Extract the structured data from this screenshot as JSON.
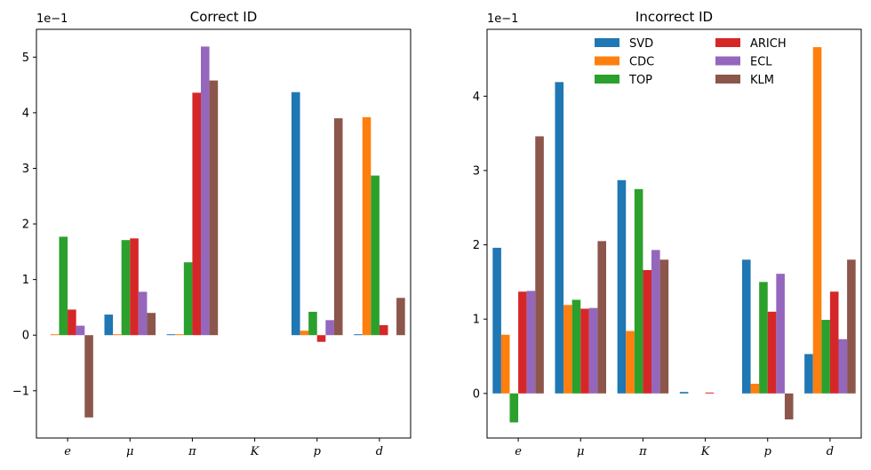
{
  "chart_data": [
    {
      "type": "bar",
      "title": "Correct ID",
      "scale_label": "1e−1",
      "categories": [
        "e",
        "μ",
        "π",
        "K",
        "p",
        "d"
      ],
      "ylim": [
        -1.85,
        5.5
      ],
      "yticks": [
        -1,
        0,
        1,
        2,
        3,
        4,
        5
      ],
      "ytick_labels": [
        "−1",
        "0",
        "1",
        "2",
        "3",
        "4",
        "5"
      ],
      "series": [
        {
          "name": "SVD",
          "color": "#1f77b4",
          "values": [
            0.0,
            0.37,
            0.01,
            0.0,
            4.37,
            0.01
          ]
        },
        {
          "name": "CDC",
          "color": "#ff7f0e",
          "values": [
            0.01,
            0.01,
            0.01,
            0.0,
            0.08,
            3.92
          ]
        },
        {
          "name": "TOP",
          "color": "#2ca02c",
          "values": [
            1.77,
            1.71,
            1.31,
            0.0,
            0.42,
            2.87
          ]
        },
        {
          "name": "ARICH",
          "color": "#d62728",
          "values": [
            0.46,
            1.74,
            4.36,
            0.0,
            -0.12,
            0.18
          ]
        },
        {
          "name": "ECL",
          "color": "#9467bd",
          "values": [
            0.17,
            0.78,
            5.19,
            0.0,
            0.27,
            0.0
          ]
        },
        {
          "name": "KLM",
          "color": "#8c564b",
          "values": [
            -1.48,
            0.4,
            4.58,
            0.0,
            3.9,
            0.67
          ]
        }
      ]
    },
    {
      "type": "bar",
      "title": "Incorrect ID",
      "scale_label": "1e−1",
      "categories": [
        "e",
        "μ",
        "π",
        "K",
        "p",
        "d"
      ],
      "ylim": [
        -0.6,
        4.9
      ],
      "yticks": [
        0,
        1,
        2,
        3,
        4
      ],
      "ytick_labels": [
        "0",
        "1",
        "2",
        "3",
        "4"
      ],
      "legend": {
        "placement": "top-center",
        "columns": 2
      },
      "series": [
        {
          "name": "SVD",
          "color": "#1f77b4",
          "values": [
            1.96,
            4.19,
            2.87,
            0.02,
            1.8,
            0.53
          ]
        },
        {
          "name": "CDC",
          "color": "#ff7f0e",
          "values": [
            0.79,
            1.19,
            0.84,
            0.0,
            0.13,
            4.66
          ]
        },
        {
          "name": "TOP",
          "color": "#2ca02c",
          "values": [
            -0.39,
            1.26,
            2.75,
            0.0,
            1.5,
            0.99
          ]
        },
        {
          "name": "ARICH",
          "color": "#d62728",
          "values": [
            1.37,
            1.14,
            1.66,
            0.01,
            1.1,
            1.37
          ]
        },
        {
          "name": "ECL",
          "color": "#9467bd",
          "values": [
            1.38,
            1.15,
            1.93,
            0.0,
            1.61,
            0.73
          ]
        },
        {
          "name": "KLM",
          "color": "#8c564b",
          "values": [
            3.46,
            2.05,
            1.8,
            0.0,
            -0.35,
            1.8
          ]
        }
      ]
    }
  ]
}
